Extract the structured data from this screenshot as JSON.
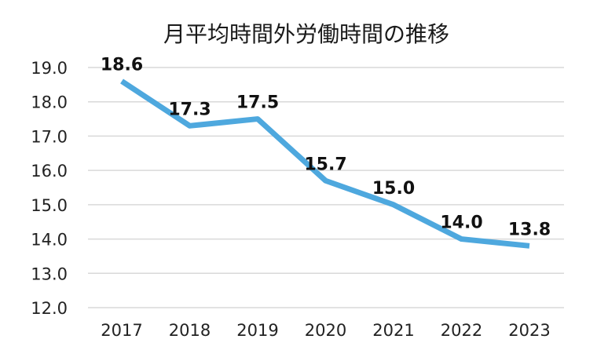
{
  "chart_data": {
    "type": "line",
    "title": "月平均時間外労働時間の推移",
    "xlabel": "",
    "ylabel": "",
    "categories": [
      "2017",
      "2018",
      "2019",
      "2020",
      "2021",
      "2022",
      "2023"
    ],
    "series": [
      {
        "values": [
          18.6,
          17.3,
          17.5,
          15.7,
          15.0,
          14.0,
          13.8
        ],
        "color": "#4ea8de"
      }
    ],
    "data_labels": [
      "18.6",
      "17.3",
      "17.5",
      "15.7",
      "15.0",
      "14.0",
      "13.8"
    ],
    "ylim": [
      12.0,
      19.0
    ],
    "yticks": [
      "12.0",
      "13.0",
      "14.0",
      "15.0",
      "16.0",
      "17.0",
      "18.0",
      "19.0"
    ],
    "grid": true,
    "gridline_color": "#d9d9d9",
    "legend": "none"
  }
}
